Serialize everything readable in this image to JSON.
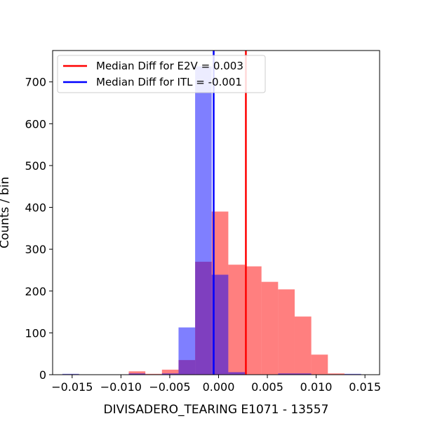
{
  "chart_data": {
    "type": "histogram",
    "xlabel": "DIVISADERO_TEARING E1071 - 13557",
    "ylabel": "Counts / bin",
    "xlim": [
      -0.017,
      0.0165
    ],
    "ylim": [
      0,
      775
    ],
    "x_ticks": [
      -0.015,
      -0.01,
      -0.005,
      0.0,
      0.005,
      0.01,
      0.015
    ],
    "x_tick_labels": [
      "−0.015",
      "−0.010",
      "−0.005",
      "0.000",
      "0.005",
      "0.010",
      "0.015"
    ],
    "y_ticks": [
      0,
      100,
      200,
      300,
      400,
      500,
      600,
      700
    ],
    "y_tick_labels": [
      "0",
      "100",
      "200",
      "300",
      "400",
      "500",
      "600",
      "700"
    ],
    "grid": false,
    "legend_position": "upper-left",
    "series": [
      {
        "label": "E2V",
        "color": "#ff0000",
        "alpha": 0.5,
        "bin_edges": [
          -0.016,
          -0.0143,
          -0.0126,
          -0.0109,
          -0.0092,
          -0.0075,
          -0.0058,
          -0.0041,
          -0.0024,
          -0.0007,
          0.001,
          0.0027,
          0.0044,
          0.0061,
          0.0078,
          0.0095,
          0.0112,
          0.0129,
          0.0146
        ],
        "counts": [
          1,
          0,
          0,
          0,
          8,
          2,
          12,
          35,
          270,
          390,
          263,
          259,
          222,
          204,
          139,
          48,
          3,
          1
        ]
      },
      {
        "label": "ITL",
        "color": "#0000ff",
        "alpha": 0.5,
        "bin_edges": [
          -0.016,
          -0.0143,
          -0.0126,
          -0.0109,
          -0.0092,
          -0.0075,
          -0.0058,
          -0.0041,
          -0.0024,
          -0.0007,
          0.001,
          0.0027,
          0.0044,
          0.0061,
          0.0078,
          0.0095,
          0.0112,
          0.0129,
          0.0146
        ],
        "counts": [
          2,
          0,
          0,
          0,
          3,
          0,
          3,
          113,
          737,
          239,
          6,
          0,
          0,
          3,
          3,
          0,
          0,
          2
        ]
      }
    ],
    "vlines": [
      {
        "x": 0.0028,
        "color": "#ff0000"
      },
      {
        "x": -0.0005,
        "color": "#0000ff"
      }
    ],
    "legend": [
      {
        "label": "Median Diff for E2V = 0.003",
        "color": "#ff0000"
      },
      {
        "label": "Median Diff for ITL = -0.001",
        "color": "#0000ff"
      }
    ]
  }
}
